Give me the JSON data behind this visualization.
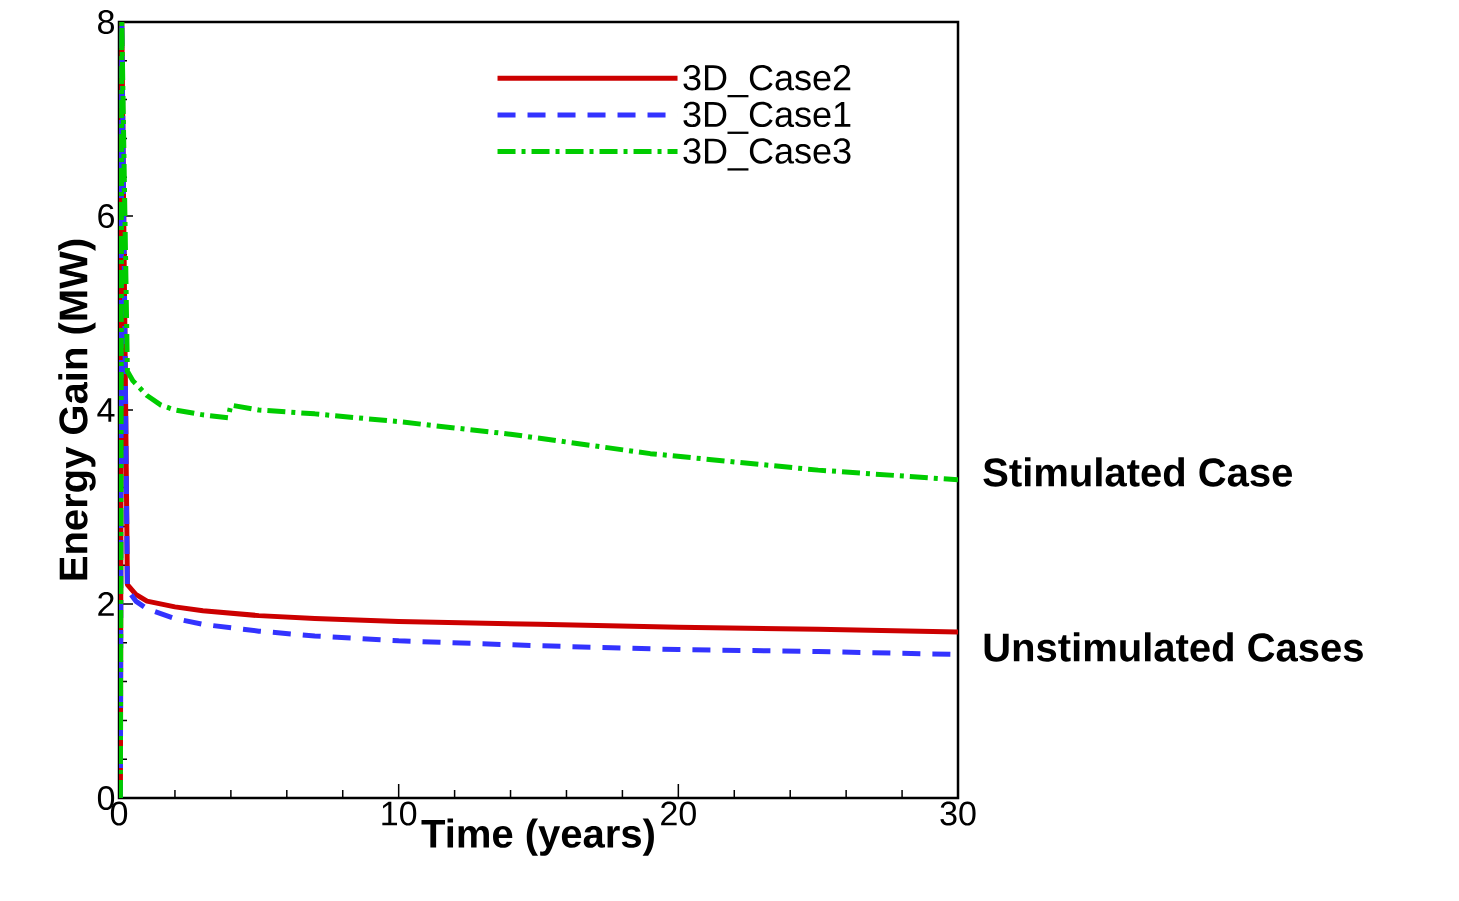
{
  "chart_data": {
    "type": "line",
    "xlabel": "Time (years)",
    "ylabel": "Energy Gain (MW)",
    "xlim": [
      0,
      30
    ],
    "ylim": [
      0,
      8
    ],
    "xticks": [
      0,
      10,
      20,
      30
    ],
    "yticks": [
      0,
      2,
      4,
      6,
      8
    ],
    "grid": false,
    "legend": "top right",
    "series": [
      {
        "name": "3D_Case2",
        "color": "#cc0000",
        "line_style": "solid",
        "x": [
          0.05,
          0.1,
          0.3,
          0.6,
          1,
          2,
          3,
          5,
          7,
          10,
          15,
          20,
          25,
          30
        ],
        "values": [
          0,
          8,
          2.2,
          2.1,
          2.03,
          1.97,
          1.93,
          1.88,
          1.85,
          1.82,
          1.79,
          1.76,
          1.74,
          1.71
        ]
      },
      {
        "name": "3D_Case1",
        "color": "#3333ff",
        "line_style": "dashed",
        "x": [
          0.05,
          0.1,
          0.3,
          0.6,
          1,
          2,
          3,
          5,
          7,
          10,
          15,
          20,
          25,
          30
        ],
        "values": [
          0,
          8,
          2.15,
          2.03,
          1.95,
          1.85,
          1.79,
          1.72,
          1.67,
          1.62,
          1.57,
          1.53,
          1.51,
          1.48
        ]
      },
      {
        "name": "3D_Case3",
        "color": "#00cc00",
        "line_style": "dashdot",
        "x": [
          0.05,
          0.1,
          0.3,
          0.5,
          1,
          1.5,
          2,
          3,
          3.9,
          4,
          5,
          7,
          10,
          14,
          19,
          25,
          30
        ],
        "values": [
          0,
          8,
          4.4,
          4.3,
          4.15,
          4.05,
          4.0,
          3.95,
          3.92,
          4.05,
          4.0,
          3.96,
          3.88,
          3.75,
          3.55,
          3.38,
          3.28
        ]
      }
    ],
    "annotations": [
      "Stimulated Case",
      "Unstimulated Cases"
    ]
  }
}
